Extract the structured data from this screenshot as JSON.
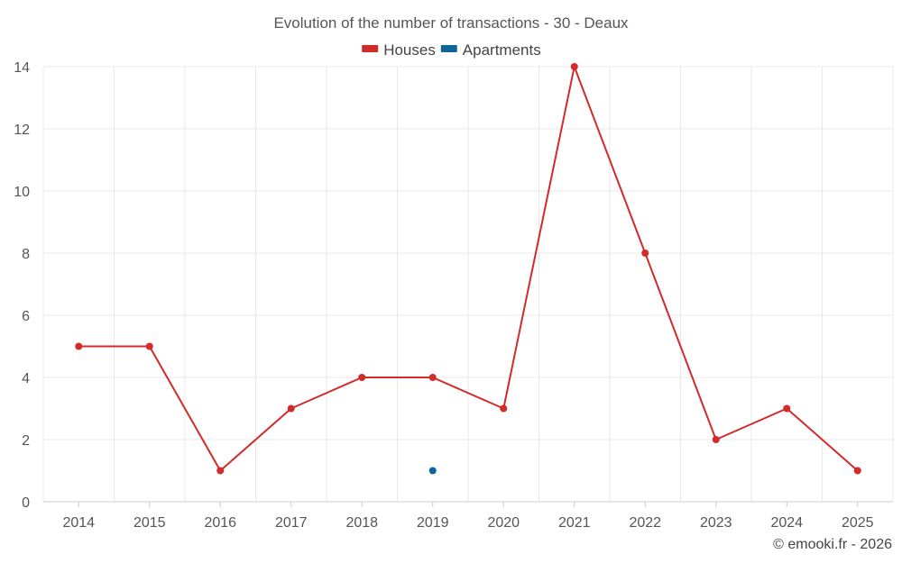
{
  "chart_data": {
    "type": "line",
    "title": "Evolution of the number of transactions - 30 - Deaux",
    "categories": [
      "2014",
      "2015",
      "2016",
      "2017",
      "2018",
      "2019",
      "2020",
      "2021",
      "2022",
      "2023",
      "2024",
      "2025"
    ],
    "series": [
      {
        "name": "Houses",
        "color": "#d32a2a",
        "values": [
          5,
          5,
          1,
          3,
          4,
          4,
          3,
          14,
          8,
          2,
          3,
          1
        ]
      },
      {
        "name": "Apartments",
        "color": "#0f6596",
        "values": [
          null,
          null,
          null,
          null,
          null,
          1,
          null,
          null,
          null,
          null,
          null,
          null
        ]
      }
    ],
    "ylim": [
      0,
      14
    ],
    "yticks": [
      0,
      2,
      4,
      6,
      8,
      10,
      12,
      14
    ],
    "xlabel": "",
    "ylabel": "",
    "grid": true,
    "legend_position": "top-center"
  },
  "credit": "© emooki.fr - 2026"
}
